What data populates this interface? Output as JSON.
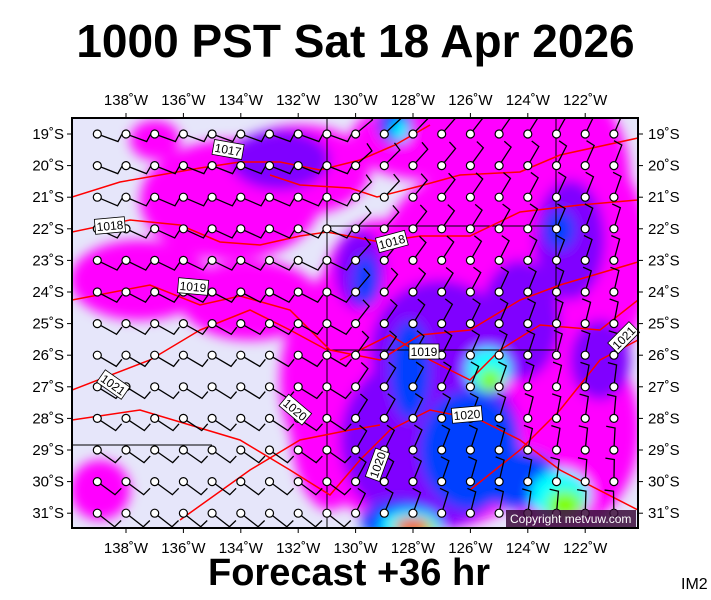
{
  "title": "1000 PST Sat 18 Apr 2026",
  "footer": "Forecast +36 hr",
  "image_code": "IM2",
  "copyright": "Copyright metvuw.com",
  "map": {
    "longitude_labels": [
      "138˚W",
      "136˚W",
      "134˚W",
      "132˚W",
      "130˚W",
      "128˚W",
      "126˚W",
      "124˚W",
      "122˚W"
    ],
    "latitude_labels": [
      "19˚S",
      "20˚S",
      "21˚S",
      "22˚S",
      "23˚S",
      "24˚S",
      "25˚S",
      "26˚S",
      "27˚S",
      "28˚S",
      "29˚S",
      "30˚S",
      "31˚S"
    ],
    "isobar_labels": [
      "1017",
      "1018",
      "1018",
      "1019",
      "1019",
      "1020",
      "1020",
      "1020",
      "1021",
      "1021"
    ],
    "colors": {
      "background": "#e6e6fa",
      "light_rain": "#ff00ff",
      "moderate": "#8000ff",
      "heavy": "#0040ff",
      "very_heavy": "#00ffff",
      "extreme": "#80ff00",
      "isobar": "#ff0000"
    }
  }
}
